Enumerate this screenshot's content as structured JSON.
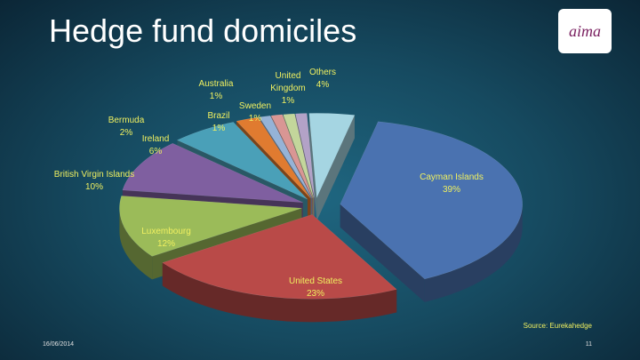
{
  "chart_data": {
    "type": "pie",
    "title": "Hedge fund domiciles",
    "categories": [
      "Cayman Islands",
      "United States",
      "Luxembourg",
      "British Virgin Islands",
      "Ireland",
      "Bermuda",
      "Brazil",
      "Australia",
      "Sweden",
      "United Kingdom",
      "Others"
    ],
    "values": [
      39,
      23,
      12,
      10,
      6,
      2,
      1,
      1,
      1,
      1,
      4
    ],
    "value_labels": [
      "39%",
      "23%",
      "12%",
      "10%",
      "6%",
      "2%",
      "1%",
      "1%",
      "1%",
      "1%",
      "4%"
    ],
    "colors": [
      "#4a72b0",
      "#b94a48",
      "#9bbb59",
      "#7f5fa0",
      "#4aa0b8",
      "#e07b30",
      "#95b3d7",
      "#d99694",
      "#c3d69b",
      "#b3a2c7",
      "#a5d5e2"
    ],
    "source": "Source: Eurekahedge"
  },
  "date": "16/06/2014",
  "page_number": "11",
  "logo": "aima"
}
